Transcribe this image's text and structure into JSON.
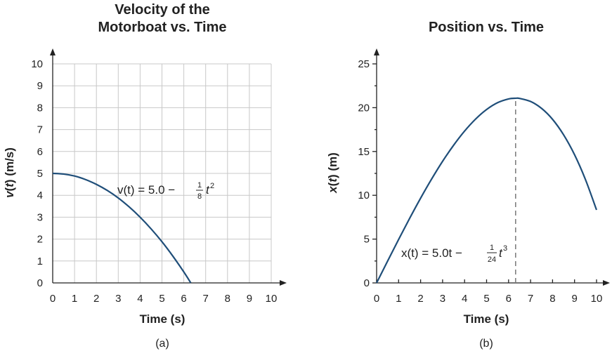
{
  "chart_data": [
    {
      "type": "line",
      "title_lines": [
        "Velocity of the",
        "Motorboat vs. Time"
      ],
      "xlabel": "Time (s)",
      "ylabel_parts": [
        "v",
        "(",
        "t",
        ") (m/s)"
      ],
      "xlim": [
        0,
        10
      ],
      "ylim": [
        0,
        10
      ],
      "xticks": [
        "0",
        "1",
        "2",
        "3",
        "4",
        "5",
        "6",
        "7",
        "8",
        "9",
        "10"
      ],
      "yticks": [
        "0",
        "1",
        "2",
        "3",
        "4",
        "5",
        "6",
        "7",
        "8",
        "9",
        "10"
      ],
      "grid": true,
      "sublabel": "(a)",
      "color": "#1f4e79",
      "equation": {
        "lhs": "v(t) = 5.0 − ",
        "num": "1",
        "den": "8",
        "var": "t",
        "exp": "2"
      },
      "series": [
        {
          "x": [
            0,
            0.5,
            1,
            1.5,
            2,
            2.5,
            3,
            3.5,
            4,
            4.5,
            5,
            5.5,
            6,
            6.32
          ],
          "y": [
            5.0,
            4.97,
            4.88,
            4.72,
            4.5,
            4.22,
            3.88,
            3.47,
            3.0,
            2.47,
            1.88,
            1.22,
            0.5,
            0.0
          ]
        }
      ]
    },
    {
      "type": "line",
      "title_lines": [
        "Position vs. Time"
      ],
      "xlabel": "Time (s)",
      "ylabel_parts": [
        "x",
        "(",
        "t",
        ") (m)"
      ],
      "xlim": [
        0,
        10
      ],
      "ylim": [
        0,
        25
      ],
      "xticks": [
        "0",
        "1",
        "2",
        "3",
        "4",
        "5",
        "6",
        "7",
        "8",
        "9",
        "10"
      ],
      "yticks": [
        "0",
        "5",
        "10",
        "15",
        "20",
        "25"
      ],
      "grid": false,
      "sublabel": "(b)",
      "color": "#1f4e79",
      "equation": {
        "lhs": "x(t) = 5.0t − ",
        "num": "1",
        "den": "24",
        "var": "t",
        "exp": "3"
      },
      "reference_line": {
        "x": 6.32,
        "style": "dashed"
      },
      "series": [
        {
          "x": [
            0,
            0.5,
            1,
            1.5,
            2,
            2.5,
            3,
            3.5,
            4,
            4.5,
            5,
            5.5,
            6,
            6.32,
            6.5,
            7,
            7.5,
            8,
            8.5,
            9,
            9.5,
            10
          ],
          "y": [
            0,
            2.49,
            4.96,
            7.36,
            9.67,
            11.85,
            13.88,
            15.71,
            17.33,
            18.7,
            19.79,
            20.57,
            21.0,
            21.08,
            21.06,
            20.71,
            19.92,
            18.67,
            16.91,
            14.63,
            11.77,
            8.33
          ]
        }
      ]
    }
  ]
}
